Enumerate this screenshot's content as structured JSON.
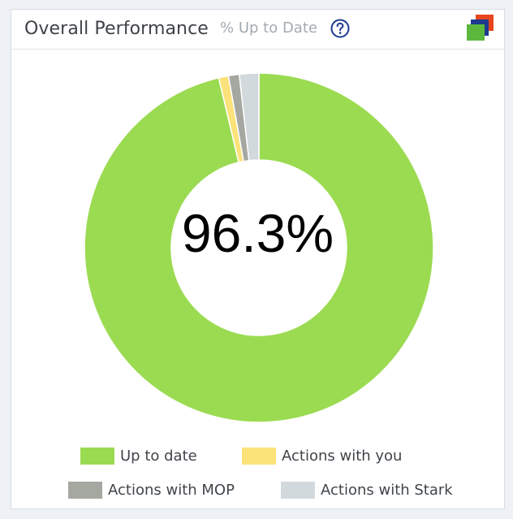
{
  "header": {
    "title": "Overall Performance",
    "subtitle": "% Up to Date"
  },
  "icons": {
    "help": "question-circle-icon",
    "app": "stacked-squares-icon"
  },
  "colors": {
    "up_to_date": "#9bdb51",
    "actions_with_you": "#fbe27a",
    "actions_with_mop": "#a5a8a1",
    "actions_with_stark": "#d2d9dc",
    "help_icon": "#1d3a8f",
    "app_icon_front": "#5cb83c",
    "app_icon_middle": "#1d3a8f",
    "app_icon_back": "#e8451d"
  },
  "center_value": "96.3%",
  "chart_data": {
    "type": "pie",
    "variant": "donut",
    "center_label": "96.3%",
    "categories": [
      "Up to date",
      "Actions with you",
      "Actions with MOP",
      "Actions with Stark"
    ],
    "values": [
      96.3,
      0.9,
      1.0,
      1.8
    ],
    "unit": "%",
    "legend_position": "bottom",
    "legend": [
      {
        "label": "Up to date",
        "color": "#9bdb51"
      },
      {
        "label": "Actions with you",
        "color": "#fbe27a"
      },
      {
        "label": "Actions with MOP",
        "color": "#a5a8a1"
      },
      {
        "label": "Actions with Stark",
        "color": "#d2d9dc"
      }
    ]
  }
}
